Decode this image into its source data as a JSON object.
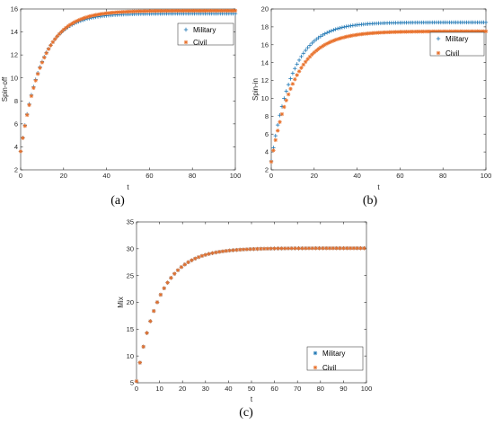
{
  "colors": {
    "military": "#1f77b4",
    "civil": "#e8702a",
    "axis": "#262626"
  },
  "chart_data": [
    {
      "type": "scatter",
      "panel_label": "(a)",
      "xlabel": "t",
      "ylabel": "Spin-off",
      "xlim": [
        0,
        100
      ],
      "ylim": [
        2,
        16
      ],
      "xticks": [
        "0",
        "20",
        "40",
        "60",
        "80",
        "100"
      ],
      "yticks": [
        "2",
        "4",
        "6",
        "8",
        "10",
        "12",
        "14",
        "16"
      ],
      "legend_position": "top-right",
      "markers": {
        "Military": "+",
        "Civil": "*"
      },
      "series": [
        {
          "name": "Military",
          "x0": 0,
          "step": 1.0,
          "count": 101,
          "start": 3.6,
          "end": 15.6,
          "tau": 9.5
        },
        {
          "name": "Civil",
          "x0": 0,
          "step": 1.0,
          "count": 101,
          "start": 3.6,
          "end": 15.85,
          "tau": 10.0
        }
      ]
    },
    {
      "type": "scatter",
      "panel_label": "(b)",
      "xlabel": "t",
      "ylabel": "Spin-in",
      "xlim": [
        0,
        100
      ],
      "ylim": [
        2,
        20
      ],
      "xticks": [
        "0",
        "20",
        "40",
        "60",
        "80",
        "100"
      ],
      "yticks": [
        "2",
        "4",
        "6",
        "8",
        "10",
        "12",
        "14",
        "16",
        "18",
        "20"
      ],
      "legend_position": "top-right",
      "markers": {
        "Military": "+",
        "Civil": "*"
      },
      "series": [
        {
          "name": "Military",
          "x0": 0,
          "step": 1.0,
          "count": 101,
          "start": 3.0,
          "end": 18.5,
          "tau": 10.0
        },
        {
          "name": "Civil",
          "x0": 0,
          "step": 1.0,
          "count": 101,
          "start": 2.9,
          "end": 17.5,
          "tau": 11.0
        }
      ]
    },
    {
      "type": "scatter",
      "panel_label": "(c)",
      "xlabel": "t",
      "ylabel": "Mix",
      "xlim": [
        0,
        100
      ],
      "ylim": [
        5,
        35
      ],
      "xticks": [
        "0",
        "10",
        "20",
        "30",
        "40",
        "50",
        "60",
        "70",
        "80",
        "90",
        "100"
      ],
      "yticks": [
        "5",
        "10",
        "15",
        "20",
        "25",
        "30",
        "35"
      ],
      "legend_position": "bottom-right",
      "markers": {
        "Military": "*",
        "Civil": "*"
      },
      "series": [
        {
          "name": "Military",
          "x0": 0,
          "step": 1.5,
          "count": 68,
          "start": 5.3,
          "end": 30.1,
          "tau": 10.0
        },
        {
          "name": "Civil",
          "x0": 0,
          "step": 1.5,
          "count": 68,
          "start": 5.3,
          "end": 30.1,
          "tau": 10.0
        }
      ]
    }
  ]
}
